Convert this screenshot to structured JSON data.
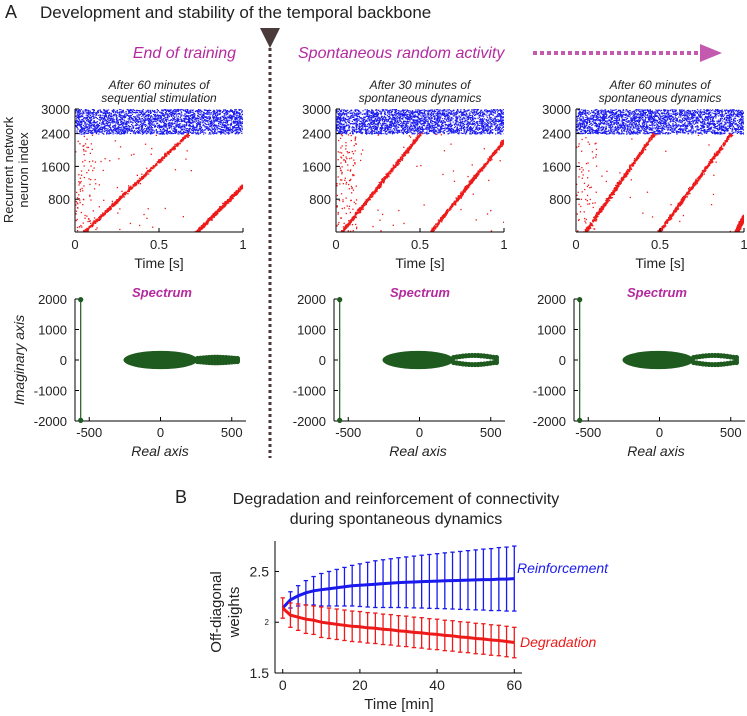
{
  "figure": {
    "panel_a_letter": "A",
    "panel_a_title": "Development and stability of the temporal backbone",
    "end_label": "End of training",
    "spont_label": "Spontaneous random activity",
    "panel_b_letter": "B",
    "panel_b_title_line1": "Degradation and reinforcement of connectivity",
    "panel_b_title_line2": "during spontaneous dynamics"
  },
  "colors": {
    "blue": "#1a1aee",
    "red": "#ee1a1a",
    "green": "#1f5a1f",
    "magenta": "#b42a9e",
    "divider": "#4a3a3a"
  },
  "chart_data": [
    {
      "type": "scatter",
      "name": "raster-1",
      "title_line1": "After 60 minutes of",
      "title_line2": "sequential stimulation",
      "xlabel": "Time [s]",
      "ylabel_line1": "Recurrent network",
      "ylabel_line2": "neuron index",
      "xlim": [
        0,
        1
      ],
      "ylim": [
        0,
        3000
      ],
      "xticks": [
        "0",
        "0.5",
        "1"
      ],
      "xtick_values": [
        0,
        0.5,
        1
      ],
      "yticks": [
        "3000",
        "2400",
        "1600",
        "800"
      ],
      "ytick_values": [
        3000,
        2400,
        1600,
        800
      ],
      "inhibitory_range": [
        2400,
        3000
      ],
      "sequences": [
        {
          "t_start": 0.05,
          "t_end": 0.67,
          "n_start": 0,
          "n_end": 2400
        },
        {
          "t_start": 0.72,
          "t_end": 1.0,
          "n_start": 0,
          "n_end": 1150
        }
      ]
    },
    {
      "type": "scatter",
      "name": "raster-2",
      "title_line1": "After 30 minutes of",
      "title_line2": "spontaneous dynamics",
      "xlabel": "Time [s]",
      "xlim": [
        0,
        1
      ],
      "ylim": [
        0,
        3000
      ],
      "xticks": [
        "0",
        "0.5",
        "1"
      ],
      "xtick_values": [
        0,
        0.5,
        1
      ],
      "yticks": [
        "3000",
        "2400",
        "1600",
        "800"
      ],
      "ytick_values": [
        3000,
        2400,
        1600,
        800
      ],
      "inhibitory_range": [
        2400,
        3000
      ],
      "sequences": [
        {
          "t_start": 0.03,
          "t_end": 0.5,
          "n_start": 0,
          "n_end": 2400
        },
        {
          "t_start": 0.56,
          "t_end": 1.0,
          "n_start": 0,
          "n_end": 2250
        }
      ]
    },
    {
      "type": "scatter",
      "name": "raster-3",
      "title_line1": "After 60 minutes of",
      "title_line2": "spontaneous dynamics",
      "xlabel": "Time [s]",
      "xlim": [
        0,
        1
      ],
      "ylim": [
        0,
        3000
      ],
      "xticks": [
        "0",
        "0.5",
        "1"
      ],
      "xtick_values": [
        0,
        0.5,
        1
      ],
      "yticks": [
        "3000",
        "2400",
        "1600",
        "800"
      ],
      "ytick_values": [
        3000,
        2400,
        1600,
        800
      ],
      "inhibitory_range": [
        2400,
        3000
      ],
      "sequences": [
        {
          "t_start": 0.05,
          "t_end": 0.46,
          "n_start": 0,
          "n_end": 2400
        },
        {
          "t_start": 0.49,
          "t_end": 0.92,
          "n_start": 0,
          "n_end": 2400
        },
        {
          "t_start": 0.95,
          "t_end": 1.0,
          "n_start": 0,
          "n_end": 400
        }
      ]
    },
    {
      "type": "scatter",
      "name": "spectrum-1",
      "title": "Spectrum",
      "xlabel": "Real axis",
      "ylabel": "Imaginary axis",
      "xlim": [
        -600,
        600
      ],
      "ylim": [
        -2000,
        2000
      ],
      "xticks": [
        "-500",
        "0",
        "500"
      ],
      "xtick_values": [
        -500,
        0,
        500
      ],
      "yticks": [
        "2000",
        "1000",
        "0",
        "-1000",
        "-2000"
      ],
      "ytick_values": [
        2000,
        1000,
        0,
        -1000,
        -2000
      ],
      "outliers": [
        [
          -560,
          1980
        ],
        [
          -560,
          -1980
        ]
      ],
      "bulk": {
        "x_min": -260,
        "x_max": 260,
        "half_height": 300
      },
      "tail": {
        "x_min": 260,
        "x_max": 540,
        "half_height": 150,
        "filled": true
      }
    },
    {
      "type": "scatter",
      "name": "spectrum-2",
      "title": "Spectrum",
      "xlabel": "Real axis",
      "xlim": [
        -600,
        600
      ],
      "ylim": [
        -2000,
        2000
      ],
      "xticks": [
        "-500",
        "0",
        "500"
      ],
      "xtick_values": [
        -500,
        0,
        500
      ],
      "yticks": [
        "2000",
        "1000",
        "0",
        "-1000",
        "-2000"
      ],
      "ytick_values": [
        2000,
        1000,
        0,
        -1000,
        -2000
      ],
      "outliers": [
        [
          -560,
          1980
        ],
        [
          -560,
          -1980
        ]
      ],
      "bulk": {
        "x_min": -260,
        "x_max": 240,
        "half_height": 300
      },
      "tail": {
        "x_min": 240,
        "x_max": 540,
        "half_height": 150,
        "filled": false
      }
    },
    {
      "type": "scatter",
      "name": "spectrum-3",
      "title": "Spectrum",
      "xlabel": "Real axis",
      "xlim": [
        -600,
        600
      ],
      "ylim": [
        -2000,
        2000
      ],
      "xticks": [
        "-500",
        "0",
        "500"
      ],
      "xtick_values": [
        -500,
        0,
        500
      ],
      "yticks": [
        "2000",
        "1000",
        "0",
        "-1000",
        "-2000"
      ],
      "ytick_values": [
        2000,
        1000,
        0,
        -1000,
        -2000
      ],
      "outliers": [
        [
          -560,
          1980
        ],
        [
          -560,
          -1980
        ]
      ],
      "bulk": {
        "x_min": -260,
        "x_max": 240,
        "half_height": 300
      },
      "tail": {
        "x_min": 240,
        "x_max": 540,
        "half_height": 150,
        "filled": false
      }
    },
    {
      "type": "line",
      "name": "weights",
      "xlabel": "Time [min]",
      "ylabel_line1": "Off-diagonal",
      "ylabel_line2": "weights",
      "xlim": [
        -2,
        62
      ],
      "ylim": [
        1.5,
        2.8
      ],
      "xticks": [
        "0",
        "20",
        "40",
        "60"
      ],
      "xtick_values": [
        0,
        20,
        40,
        60
      ],
      "yticks": [
        "2.5",
        "2",
        "1.5"
      ],
      "ytick_values": [
        2.5,
        2.0,
        1.5
      ],
      "series": [
        {
          "name": "Reinforcement",
          "color": "blue",
          "x": [
            0,
            2,
            4,
            6,
            8,
            10,
            12,
            14,
            16,
            18,
            20,
            22,
            24,
            26,
            28,
            30,
            32,
            34,
            36,
            38,
            40,
            42,
            44,
            46,
            48,
            50,
            52,
            54,
            56,
            58,
            60
          ],
          "y": [
            2.14,
            2.22,
            2.26,
            2.29,
            2.31,
            2.32,
            2.33,
            2.34,
            2.35,
            2.36,
            2.365,
            2.37,
            2.375,
            2.38,
            2.385,
            2.39,
            2.393,
            2.396,
            2.4,
            2.402,
            2.405,
            2.408,
            2.41,
            2.412,
            2.415,
            2.417,
            2.42,
            2.42,
            2.425,
            2.425,
            2.43
          ],
          "err": [
            0.0,
            0.08,
            0.1,
            0.12,
            0.14,
            0.16,
            0.17,
            0.18,
            0.19,
            0.2,
            0.21,
            0.22,
            0.23,
            0.235,
            0.24,
            0.245,
            0.25,
            0.255,
            0.26,
            0.265,
            0.27,
            0.275,
            0.28,
            0.285,
            0.29,
            0.295,
            0.3,
            0.305,
            0.31,
            0.315,
            0.32
          ]
        },
        {
          "name": "Degradation",
          "color": "red",
          "x": [
            0,
            2,
            4,
            6,
            8,
            10,
            12,
            14,
            16,
            18,
            20,
            22,
            24,
            26,
            28,
            30,
            32,
            34,
            36,
            38,
            40,
            42,
            44,
            46,
            48,
            50,
            52,
            54,
            56,
            58,
            60
          ],
          "y": [
            2.14,
            2.07,
            2.05,
            2.03,
            2.02,
            2.0,
            1.99,
            1.98,
            1.97,
            1.96,
            1.955,
            1.945,
            1.94,
            1.93,
            1.925,
            1.915,
            1.91,
            1.9,
            1.895,
            1.885,
            1.88,
            1.87,
            1.865,
            1.855,
            1.85,
            1.84,
            1.835,
            1.825,
            1.82,
            1.81,
            1.8
          ],
          "err": [
            0.1,
            0.12,
            0.13,
            0.14,
            0.14,
            0.15,
            0.15,
            0.15,
            0.15,
            0.15,
            0.15,
            0.15,
            0.15,
            0.15,
            0.15,
            0.15,
            0.15,
            0.15,
            0.15,
            0.15,
            0.15,
            0.15,
            0.15,
            0.15,
            0.15,
            0.15,
            0.15,
            0.15,
            0.15,
            0.15,
            0.15
          ]
        }
      ]
    }
  ]
}
